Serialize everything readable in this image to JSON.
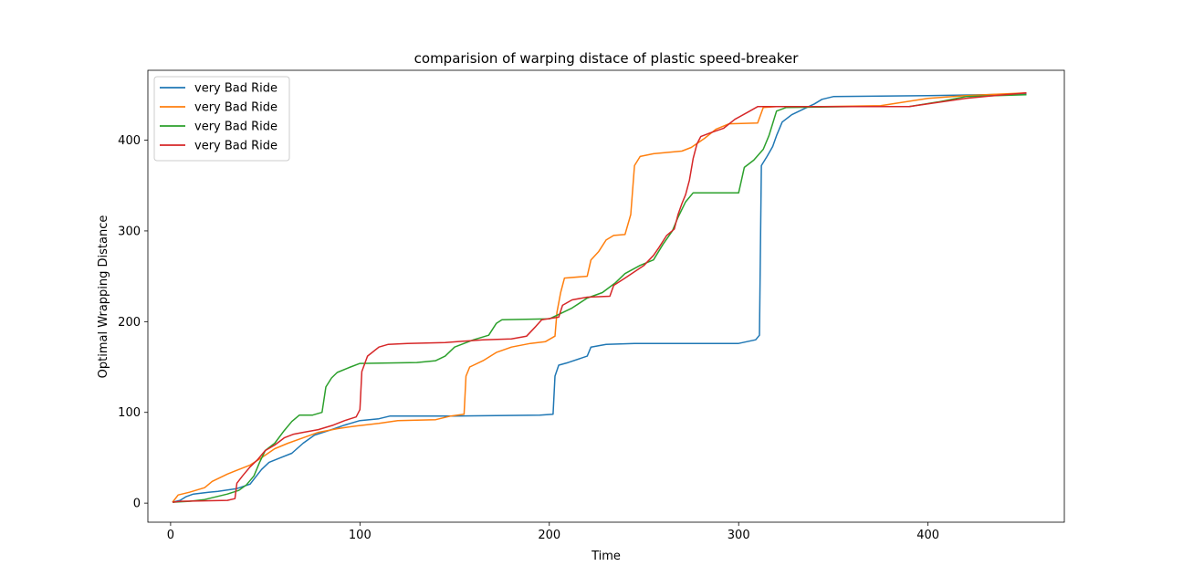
{
  "chart_data": {
    "type": "line",
    "title": "comparision of warping distace of plastic speed-breaker",
    "xlabel": "Time",
    "ylabel": "Optimal Wrapping Distance",
    "xlim": [
      -12,
      472
    ],
    "ylim": [
      -21,
      477
    ],
    "xticks": [
      0,
      100,
      200,
      300,
      400
    ],
    "yticks": [
      0,
      100,
      200,
      300,
      400
    ],
    "grid": false,
    "legend_position": "upper-left",
    "series": [
      {
        "name": "very Bad Ride",
        "color": "#1f77b4",
        "points": [
          [
            1,
            1
          ],
          [
            5,
            3
          ],
          [
            8,
            7
          ],
          [
            12,
            10
          ],
          [
            20,
            12
          ],
          [
            25,
            13
          ],
          [
            35,
            16
          ],
          [
            42,
            21
          ],
          [
            45,
            29
          ],
          [
            48,
            37
          ],
          [
            52,
            45
          ],
          [
            58,
            50
          ],
          [
            64,
            55
          ],
          [
            70,
            66
          ],
          [
            76,
            75
          ],
          [
            85,
            81
          ],
          [
            92,
            86
          ],
          [
            100,
            91
          ],
          [
            110,
            93
          ],
          [
            116,
            96
          ],
          [
            150,
            96
          ],
          [
            195,
            97
          ],
          [
            202,
            98
          ],
          [
            203,
            140
          ],
          [
            205,
            152
          ],
          [
            210,
            155
          ],
          [
            220,
            162
          ],
          [
            222,
            172
          ],
          [
            230,
            175
          ],
          [
            245,
            176
          ],
          [
            300,
            176
          ],
          [
            309,
            180
          ],
          [
            311,
            185
          ],
          [
            312,
            372
          ],
          [
            315,
            382
          ],
          [
            318,
            393
          ],
          [
            320,
            405
          ],
          [
            323,
            420
          ],
          [
            328,
            428
          ],
          [
            332,
            432
          ],
          [
            340,
            440
          ],
          [
            344,
            445
          ],
          [
            350,
            448
          ],
          [
            400,
            449
          ],
          [
            430,
            450
          ],
          [
            452,
            451
          ]
        ]
      },
      {
        "name": "very Bad Ride",
        "color": "#ff7f0e",
        "points": [
          [
            1,
            1
          ],
          [
            4,
            9
          ],
          [
            10,
            12
          ],
          [
            18,
            17
          ],
          [
            22,
            24
          ],
          [
            30,
            32
          ],
          [
            36,
            37
          ],
          [
            42,
            42
          ],
          [
            48,
            50
          ],
          [
            55,
            60
          ],
          [
            62,
            66
          ],
          [
            70,
            72
          ],
          [
            78,
            78
          ],
          [
            88,
            82
          ],
          [
            98,
            85
          ],
          [
            110,
            88
          ],
          [
            120,
            91
          ],
          [
            140,
            92
          ],
          [
            148,
            96
          ],
          [
            155,
            98
          ],
          [
            156,
            140
          ],
          [
            158,
            150
          ],
          [
            165,
            157
          ],
          [
            172,
            166
          ],
          [
            180,
            172
          ],
          [
            190,
            176
          ],
          [
            198,
            178
          ],
          [
            203,
            184
          ],
          [
            204,
            210
          ],
          [
            206,
            232
          ],
          [
            208,
            248
          ],
          [
            220,
            250
          ],
          [
            222,
            268
          ],
          [
            226,
            277
          ],
          [
            230,
            290
          ],
          [
            234,
            295
          ],
          [
            240,
            296
          ],
          [
            243,
            318
          ],
          [
            245,
            372
          ],
          [
            248,
            382
          ],
          [
            255,
            385
          ],
          [
            270,
            388
          ],
          [
            275,
            392
          ],
          [
            282,
            402
          ],
          [
            288,
            412
          ],
          [
            295,
            418
          ],
          [
            310,
            419
          ],
          [
            313,
            436
          ],
          [
            320,
            437
          ],
          [
            345,
            437
          ],
          [
            375,
            438
          ],
          [
            400,
            446
          ],
          [
            420,
            449
          ],
          [
            452,
            452
          ]
        ]
      },
      {
        "name": "very Bad Ride",
        "color": "#2ca02c",
        "points": [
          [
            1,
            1
          ],
          [
            10,
            2
          ],
          [
            18,
            4
          ],
          [
            24,
            7
          ],
          [
            30,
            10
          ],
          [
            36,
            14
          ],
          [
            40,
            20
          ],
          [
            44,
            30
          ],
          [
            47,
            45
          ],
          [
            50,
            58
          ],
          [
            55,
            66
          ],
          [
            60,
            80
          ],
          [
            64,
            90
          ],
          [
            68,
            97
          ],
          [
            75,
            97
          ],
          [
            80,
            100
          ],
          [
            82,
            128
          ],
          [
            85,
            138
          ],
          [
            88,
            144
          ],
          [
            95,
            150
          ],
          [
            100,
            154
          ],
          [
            130,
            155
          ],
          [
            140,
            157
          ],
          [
            145,
            162
          ],
          [
            150,
            172
          ],
          [
            155,
            176
          ],
          [
            160,
            180
          ],
          [
            168,
            185
          ],
          [
            172,
            198
          ],
          [
            175,
            202
          ],
          [
            200,
            203
          ],
          [
            205,
            208
          ],
          [
            212,
            215
          ],
          [
            220,
            226
          ],
          [
            228,
            232
          ],
          [
            235,
            243
          ],
          [
            240,
            253
          ],
          [
            248,
            262
          ],
          [
            255,
            268
          ],
          [
            260,
            285
          ],
          [
            265,
            300
          ],
          [
            268,
            315
          ],
          [
            272,
            332
          ],
          [
            276,
            342
          ],
          [
            300,
            342
          ],
          [
            303,
            370
          ],
          [
            308,
            378
          ],
          [
            313,
            390
          ],
          [
            316,
            405
          ],
          [
            320,
            432
          ],
          [
            325,
            436
          ],
          [
            360,
            437
          ],
          [
            390,
            437
          ],
          [
            405,
            442
          ],
          [
            420,
            448
          ],
          [
            452,
            450
          ]
        ]
      },
      {
        "name": "very Bad Ride",
        "color": "#d62728",
        "points": [
          [
            1,
            1
          ],
          [
            5,
            2
          ],
          [
            30,
            3
          ],
          [
            34,
            5
          ],
          [
            35,
            22
          ],
          [
            38,
            30
          ],
          [
            42,
            40
          ],
          [
            46,
            48
          ],
          [
            50,
            58
          ],
          [
            55,
            64
          ],
          [
            60,
            72
          ],
          [
            65,
            76
          ],
          [
            70,
            78
          ],
          [
            78,
            81
          ],
          [
            86,
            86
          ],
          [
            92,
            91
          ],
          [
            98,
            95
          ],
          [
            100,
            103
          ],
          [
            101,
            145
          ],
          [
            104,
            162
          ],
          [
            110,
            172
          ],
          [
            115,
            175
          ],
          [
            125,
            176
          ],
          [
            145,
            177
          ],
          [
            165,
            180
          ],
          [
            180,
            181
          ],
          [
            188,
            184
          ],
          [
            193,
            195
          ],
          [
            196,
            202
          ],
          [
            205,
            205
          ],
          [
            207,
            218
          ],
          [
            212,
            224
          ],
          [
            220,
            227
          ],
          [
            232,
            228
          ],
          [
            234,
            240
          ],
          [
            240,
            248
          ],
          [
            250,
            262
          ],
          [
            255,
            273
          ],
          [
            258,
            282
          ],
          [
            262,
            295
          ],
          [
            266,
            302
          ],
          [
            268,
            318
          ],
          [
            270,
            330
          ],
          [
            272,
            340
          ],
          [
            274,
            356
          ],
          [
            276,
            380
          ],
          [
            278,
            396
          ],
          [
            280,
            404
          ],
          [
            285,
            408
          ],
          [
            292,
            413
          ],
          [
            298,
            423
          ],
          [
            305,
            431
          ],
          [
            310,
            437
          ],
          [
            340,
            437
          ],
          [
            390,
            437
          ],
          [
            400,
            440
          ],
          [
            420,
            446
          ],
          [
            435,
            449
          ],
          [
            452,
            452
          ]
        ]
      }
    ]
  }
}
